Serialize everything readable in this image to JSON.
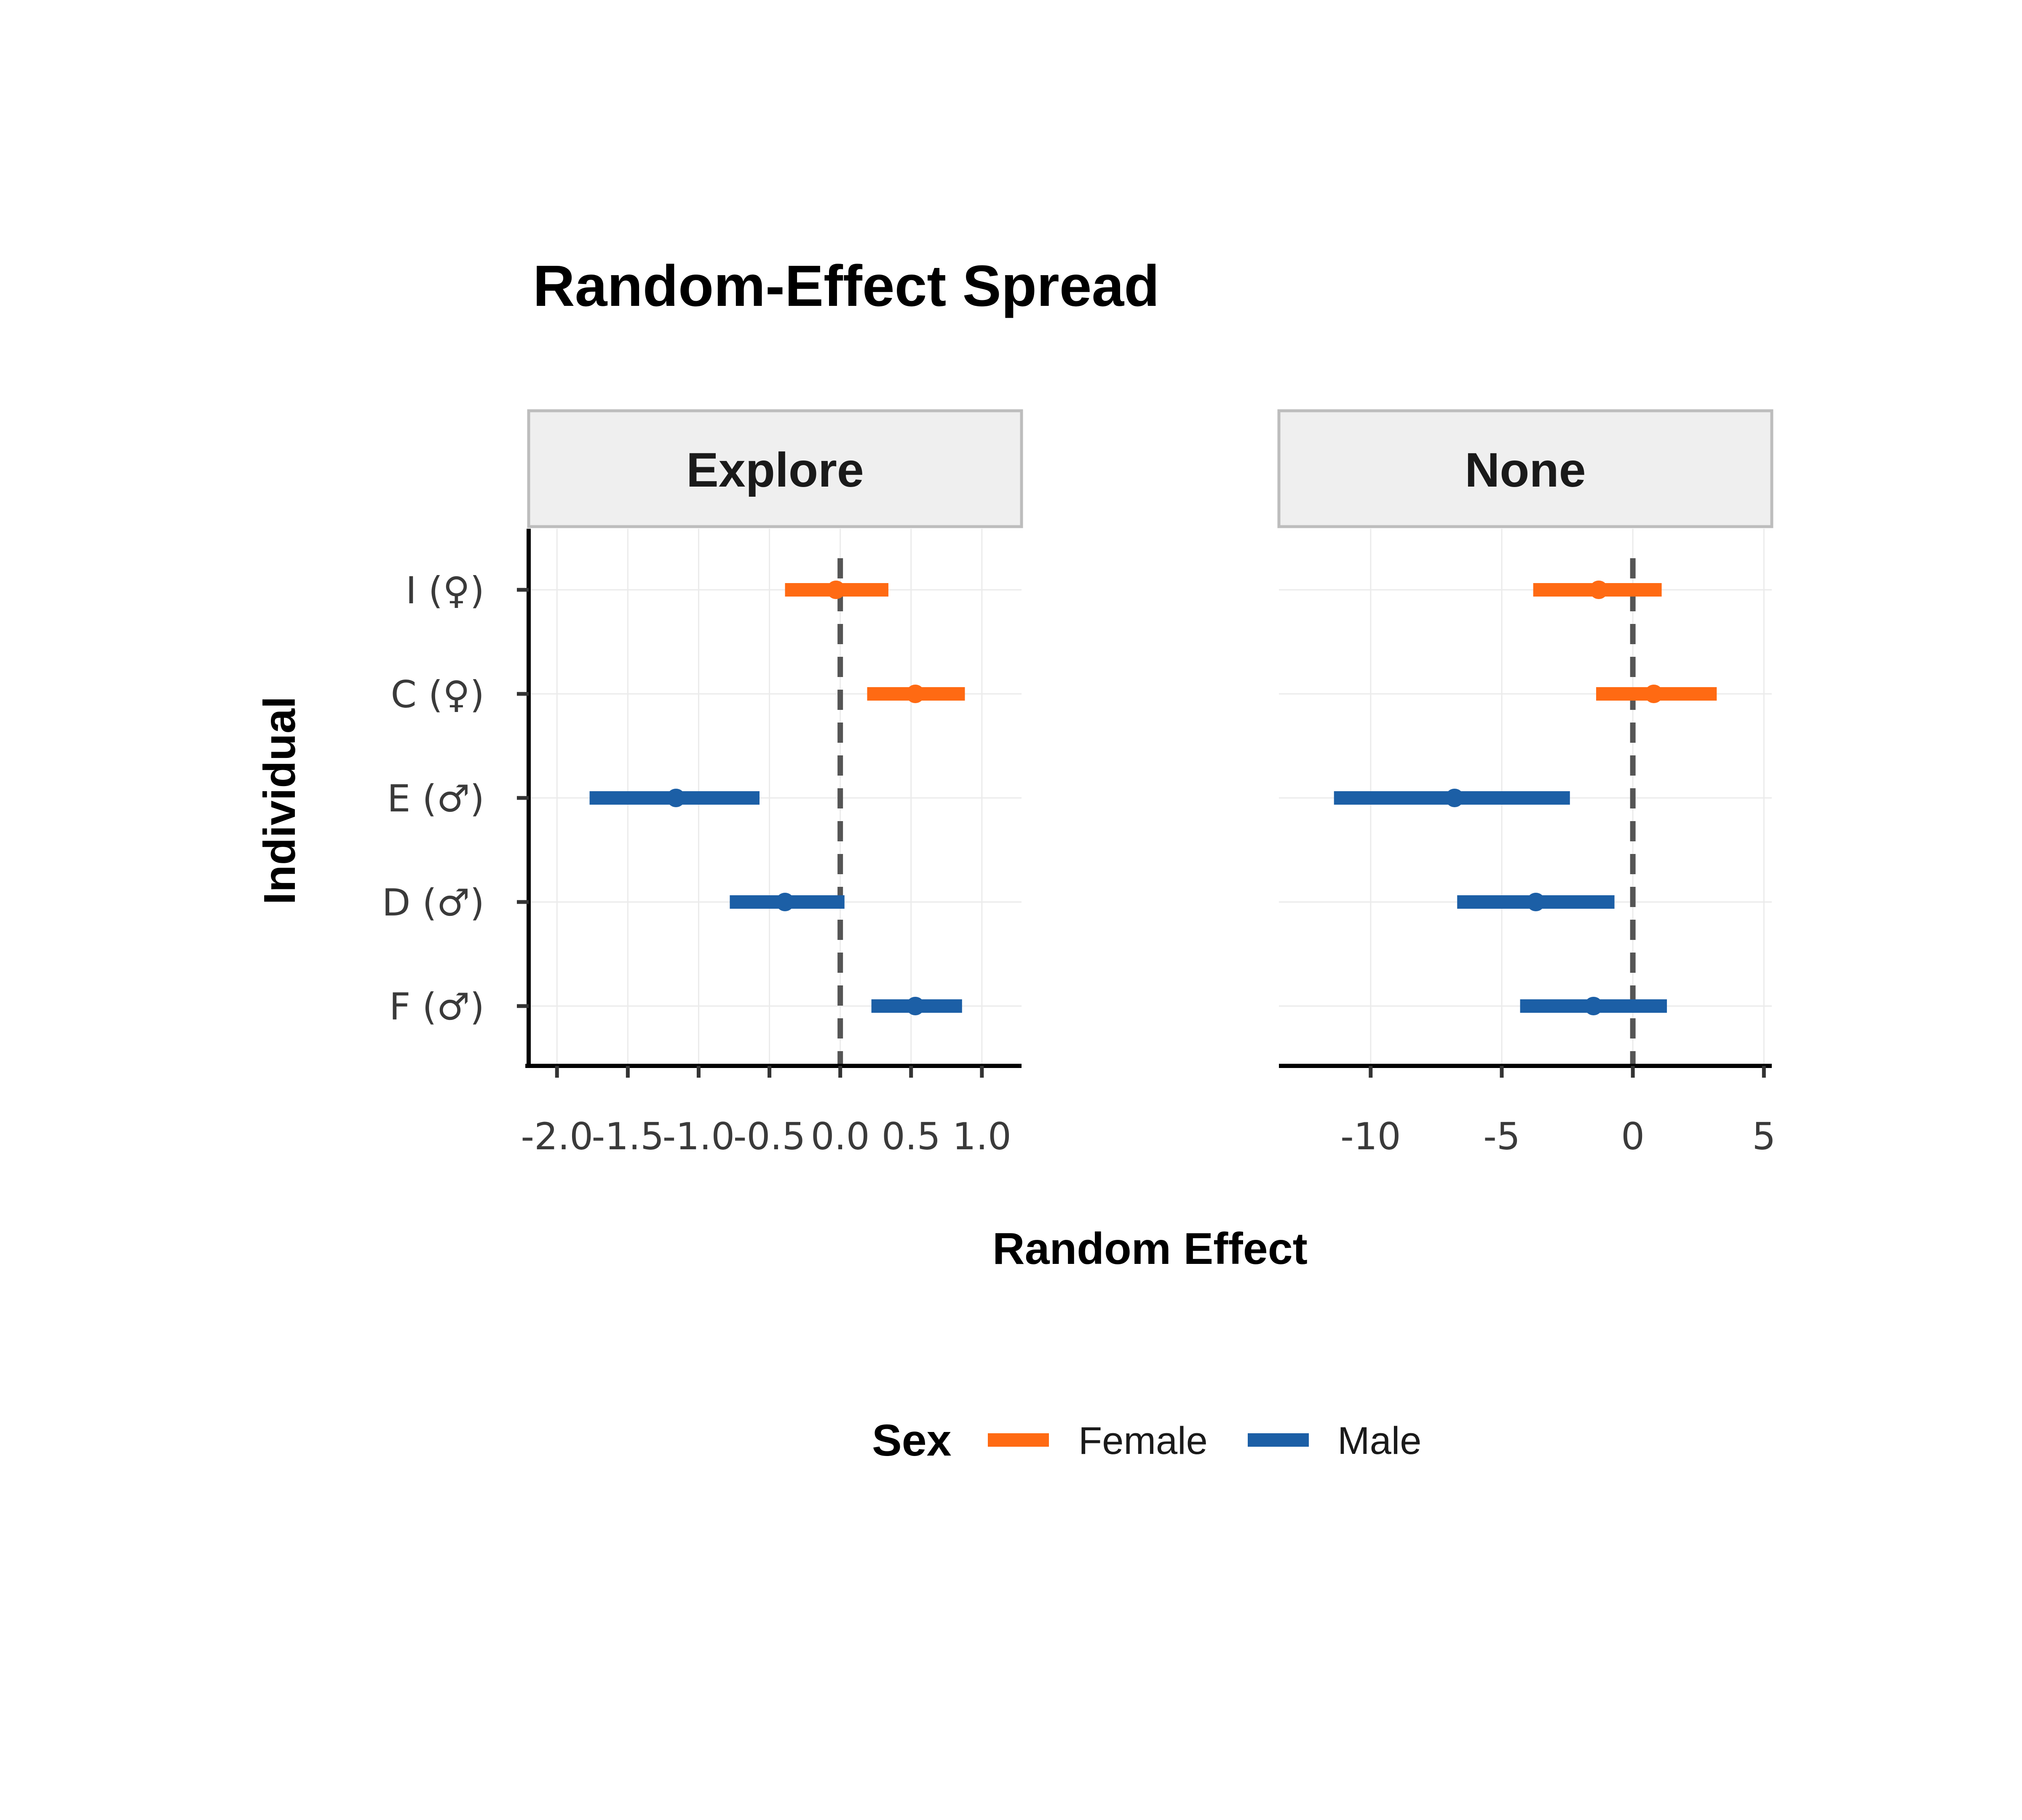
{
  "chart_data": {
    "type": "forest",
    "title": "Random-Effect Spread",
    "xlabel": "Random Effect",
    "ylabel": "Individual",
    "categories": [
      "I (♀)",
      "C (♀)",
      "E (♂)",
      "D (♂)",
      "F (♂)"
    ],
    "legend": {
      "title": "Sex",
      "placement": "bottom",
      "entries": [
        {
          "name": "Female",
          "color": "#FF6A13"
        },
        {
          "name": "Male",
          "color": "#1C5FA6"
        }
      ]
    },
    "reference_line": 0,
    "grid": true,
    "panels": [
      {
        "name": "Explore",
        "xlim": [
          -2.2,
          1.28
        ],
        "xticks": [
          -2.0,
          -1.5,
          -1.0,
          -0.5,
          0.0,
          0.5,
          1.0
        ],
        "xtick_labels": [
          "-2.0",
          "-1.5",
          "-1.0",
          "-0.5",
          "0.0",
          "0.5",
          "1.0"
        ],
        "points": [
          {
            "individual": "I (♀)",
            "sex": "Female",
            "estimate": -0.03,
            "lower": -0.39,
            "upper": 0.34
          },
          {
            "individual": "C (♀)",
            "sex": "Female",
            "estimate": 0.53,
            "lower": 0.19,
            "upper": 0.88
          },
          {
            "individual": "E (♂)",
            "sex": "Male",
            "estimate": -1.16,
            "lower": -1.77,
            "upper": -0.57
          },
          {
            "individual": "D (♂)",
            "sex": "Male",
            "estimate": -0.39,
            "lower": -0.78,
            "upper": 0.03
          },
          {
            "individual": "F (♂)",
            "sex": "Male",
            "estimate": 0.53,
            "lower": 0.22,
            "upper": 0.86
          }
        ]
      },
      {
        "name": "None",
        "xlim": [
          -13.5,
          5.3
        ],
        "xticks": [
          -10,
          -5,
          0,
          5
        ],
        "xtick_labels": [
          "-10",
          "-5",
          "0",
          "5"
        ],
        "points": [
          {
            "individual": "I (♀)",
            "sex": "Female",
            "estimate": -1.3,
            "lower": -3.8,
            "upper": 1.1
          },
          {
            "individual": "C (♀)",
            "sex": "Female",
            "estimate": 0.8,
            "lower": -1.4,
            "upper": 3.2
          },
          {
            "individual": "E (♂)",
            "sex": "Male",
            "estimate": -6.8,
            "lower": -11.4,
            "upper": -2.4
          },
          {
            "individual": "D (♂)",
            "sex": "Male",
            "estimate": -3.7,
            "lower": -6.7,
            "upper": -0.7
          },
          {
            "individual": "F (♂)",
            "sex": "Male",
            "estimate": -1.5,
            "lower": -4.3,
            "upper": 1.3
          }
        ]
      }
    ]
  }
}
